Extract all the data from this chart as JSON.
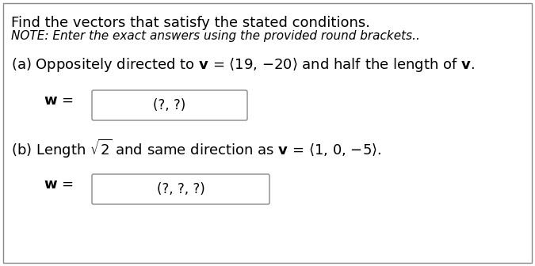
{
  "title": "Find the vectors that satisfy the stated conditions.",
  "note": "NOTE: Enter the exact answers using the provided round brackets..",
  "part_a_text": "(a) Oppositely directed to $\\mathbf{v}$ = $\\langle$19, $-$20$\\rangle$ and half the length of $\\mathbf{v}$.",
  "part_a_w": "$\\mathbf{w}$ =",
  "part_a_box": "(?, ?)",
  "part_b_text": "(b) Length $\\sqrt{2}$ and same direction as $\\mathbf{v}$ = $\\langle$1, 0, $-$5$\\rangle$.",
  "part_b_w": "$\\mathbf{w}$ =",
  "part_b_box": "(?, ?, ?)",
  "bg_color": "#ffffff",
  "border_color": "#888888",
  "text_color": "#000000",
  "box_border_color": "#888888",
  "font_size_title": 13,
  "font_size_note": 11,
  "font_size_parts": 13,
  "font_size_box": 12
}
